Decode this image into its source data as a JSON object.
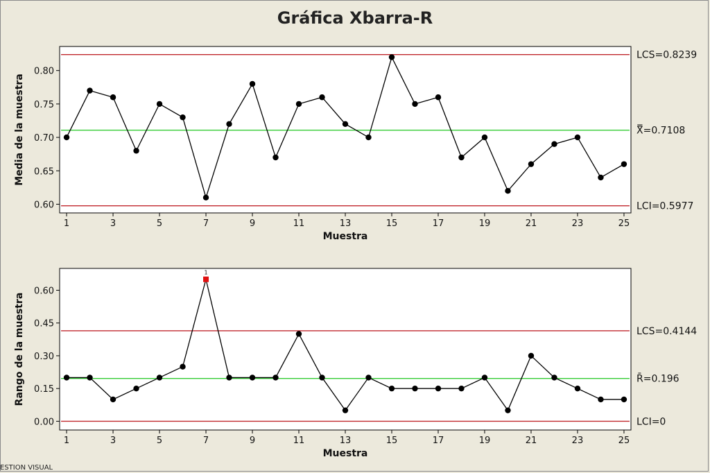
{
  "watermark": "ESTION VISUAL",
  "colors": {
    "background": "#ece9dc",
    "plot_background": "#ffffff",
    "control_limit": "#c0272d",
    "center_line": "#33cc33",
    "data": "#000000",
    "out_of_control": "#e01010"
  },
  "chart_data": [
    {
      "type": "line",
      "title": "Gráfica Xbarra-R",
      "xlabel": "Muestra",
      "ylabel": "Media de la muestra",
      "x": [
        1,
        2,
        3,
        4,
        5,
        6,
        7,
        8,
        9,
        10,
        11,
        12,
        13,
        14,
        15,
        16,
        17,
        18,
        19,
        20,
        21,
        22,
        23,
        24,
        25
      ],
      "values": [
        0.7,
        0.77,
        0.76,
        0.68,
        0.75,
        0.73,
        0.61,
        0.72,
        0.78,
        0.67,
        0.75,
        0.76,
        0.72,
        0.7,
        0.82,
        0.75,
        0.76,
        0.67,
        0.7,
        0.62,
        0.66,
        0.69,
        0.7,
        0.64,
        0.66
      ],
      "x_ticks": [
        1,
        3,
        5,
        7,
        9,
        11,
        13,
        15,
        17,
        19,
        21,
        23,
        25
      ],
      "y_ticks": [
        0.6,
        0.65,
        0.7,
        0.75,
        0.8
      ],
      "y_tick_labels": [
        "0.60",
        "0.65",
        "0.70",
        "0.75",
        "0.80"
      ],
      "xlim": [
        0.7,
        25.3
      ],
      "ylim": [
        0.587,
        0.836
      ],
      "ucl": 0.8239,
      "center": 0.7108,
      "lcl": 0.5977,
      "ucl_label": "LCS=0.8239",
      "center_label": "X̿=0.7108",
      "lcl_label": "LCI=0.5977",
      "out_of_control": []
    },
    {
      "type": "line",
      "xlabel": "Muestra",
      "ylabel": "Rango de la muestra",
      "x": [
        1,
        2,
        3,
        4,
        5,
        6,
        7,
        8,
        9,
        10,
        11,
        12,
        13,
        14,
        15,
        16,
        17,
        18,
        19,
        20,
        21,
        22,
        23,
        24,
        25
      ],
      "values": [
        0.2,
        0.2,
        0.1,
        0.15,
        0.2,
        0.25,
        0.65,
        0.2,
        0.2,
        0.2,
        0.4,
        0.2,
        0.05,
        0.2,
        0.15,
        0.15,
        0.15,
        0.15,
        0.2,
        0.05,
        0.3,
        0.2,
        0.15,
        0.1,
        0.1
      ],
      "x_ticks": [
        1,
        3,
        5,
        7,
        9,
        11,
        13,
        15,
        17,
        19,
        21,
        23,
        25
      ],
      "y_ticks": [
        0.0,
        0.15,
        0.3,
        0.45,
        0.6
      ],
      "y_tick_labels": [
        "0.00",
        "0.15",
        "0.30",
        "0.45",
        "0.60"
      ],
      "xlim": [
        0.7,
        25.3
      ],
      "ylim": [
        -0.04,
        0.7
      ],
      "ucl": 0.4144,
      "center": 0.196,
      "lcl": 0,
      "ucl_label": "LCS=0.4144",
      "center_label": "R̄=0.196",
      "lcl_label": "LCI=0",
      "out_of_control": [
        7
      ],
      "out_of_control_marker": "1"
    }
  ]
}
